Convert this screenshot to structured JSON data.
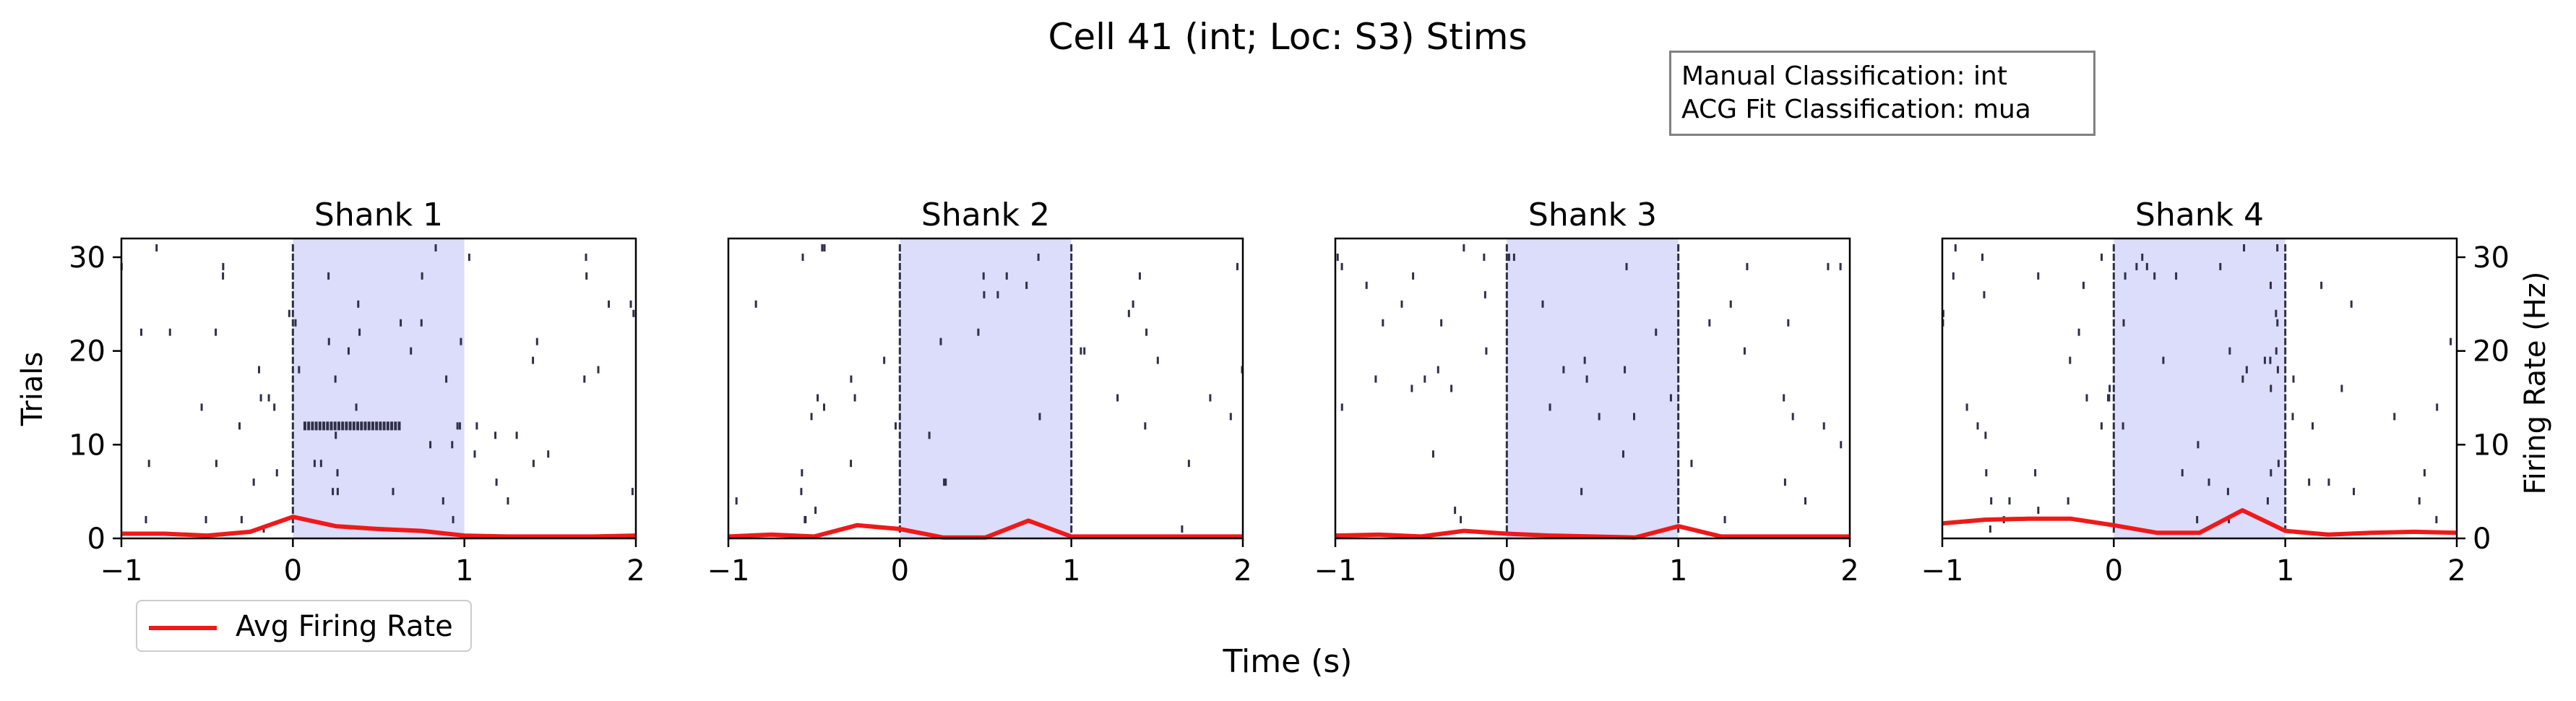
{
  "title": "Cell 41 (int; Loc: S3) Stims",
  "info": {
    "manual": "Manual Classification: int",
    "acg": "ACG Fit Classification: mua"
  },
  "legend": {
    "label": "Avg Firing Rate"
  },
  "colors": {
    "rate": "#ee1a1a",
    "stim": "#dcdcfb",
    "raster": "#2f3048"
  },
  "chart_data": [
    {
      "type": "line",
      "title": "Shank 1",
      "xlabel": "Time (s)",
      "ylabel": "Trials",
      "xlim": [
        -1,
        2
      ],
      "ylim": [
        0,
        32
      ],
      "xticks": [
        "−1",
        "0",
        "1",
        "2"
      ],
      "yticks": [
        "0",
        "10",
        "20",
        "30"
      ],
      "stim_window": [
        0,
        1
      ],
      "series": [
        {
          "name": "Avg Firing Rate",
          "x": [
            -1,
            -0.75,
            -0.5,
            -0.25,
            0,
            0.25,
            0.5,
            0.75,
            1,
            1.25,
            1.5,
            1.75,
            2
          ],
          "values": [
            0.5,
            0.5,
            0.3,
            0.7,
            2.3,
            1.3,
            1.0,
            0.8,
            0.3,
            0.2,
            0.2,
            0.2,
            0.3
          ]
        }
      ]
    },
    {
      "type": "line",
      "title": "Shank 2",
      "xlabel": "Time (s)",
      "xlim": [
        -1,
        2
      ],
      "ylim": [
        0,
        32
      ],
      "xticks": [
        "−1",
        "0",
        "1",
        "2"
      ],
      "stim_window": [
        0,
        1
      ],
      "series": [
        {
          "name": "Avg Firing Rate",
          "x": [
            -1,
            -0.75,
            -0.5,
            -0.25,
            0,
            0.25,
            0.5,
            0.75,
            1,
            1.25,
            1.5,
            1.75,
            2
          ],
          "values": [
            0.2,
            0.4,
            0.2,
            1.4,
            1.0,
            0.1,
            0.1,
            1.9,
            0.2,
            0.2,
            0.2,
            0.2,
            0.2
          ]
        }
      ]
    },
    {
      "type": "line",
      "title": "Shank 3",
      "xlabel": "Time (s)",
      "xlim": [
        -1,
        2
      ],
      "ylim": [
        0,
        32
      ],
      "xticks": [
        "−1",
        "0",
        "1",
        "2"
      ],
      "stim_window": [
        0,
        1
      ],
      "series": [
        {
          "name": "Avg Firing Rate",
          "x": [
            -1,
            -0.75,
            -0.5,
            -0.25,
            0,
            0.25,
            0.5,
            0.75,
            1,
            1.25,
            1.5,
            1.75,
            2
          ],
          "values": [
            0.3,
            0.4,
            0.2,
            0.8,
            0.5,
            0.3,
            0.2,
            0.1,
            1.3,
            0.2,
            0.2,
            0.2,
            0.2
          ]
        }
      ]
    },
    {
      "type": "line",
      "title": "Shank 4",
      "xlabel": "Time (s)",
      "ylabel2": "Firing Rate (Hz)",
      "xlim": [
        -1,
        2
      ],
      "ylim": [
        0,
        32
      ],
      "xticks": [
        "−1",
        "0",
        "1",
        "2"
      ],
      "yticks2": [
        "0",
        "10",
        "20",
        "30"
      ],
      "stim_window": [
        0,
        1
      ],
      "series": [
        {
          "name": "Avg Firing Rate",
          "x": [
            -1,
            -0.75,
            -0.5,
            -0.25,
            0,
            0.25,
            0.5,
            0.75,
            1,
            1.25,
            1.5,
            1.75,
            2
          ],
          "values": [
            1.6,
            2.0,
            2.1,
            2.1,
            1.4,
            0.6,
            0.6,
            3.0,
            0.8,
            0.4,
            0.6,
            0.7,
            0.6
          ]
        }
      ]
    }
  ]
}
